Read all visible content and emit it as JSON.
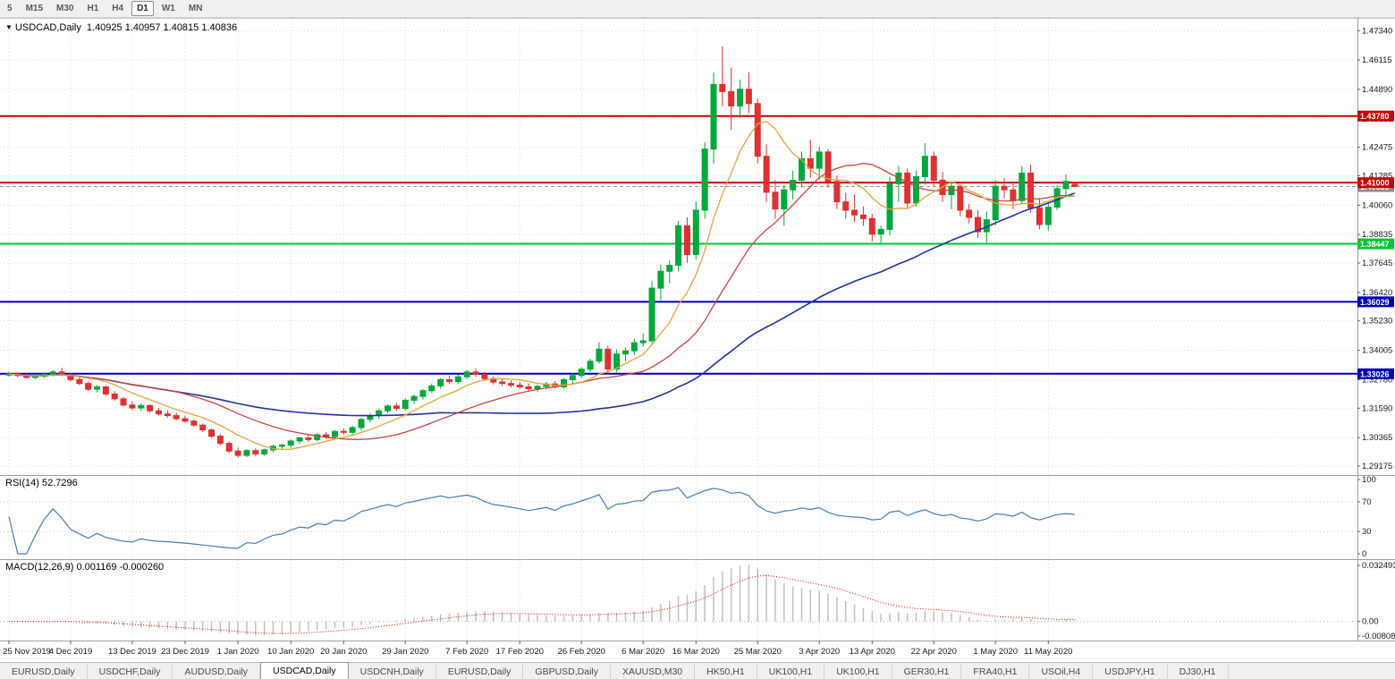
{
  "icons": {
    "collapse_triangle": "▼"
  },
  "toolbar": {
    "timeframes": [
      {
        "label": "5",
        "active": false
      },
      {
        "label": "M15",
        "active": false
      },
      {
        "label": "M30",
        "active": false
      },
      {
        "label": "H1",
        "active": false
      },
      {
        "label": "H4",
        "active": false
      },
      {
        "label": "D1",
        "active": true
      },
      {
        "label": "W1",
        "active": false
      },
      {
        "label": "MN",
        "active": false
      }
    ]
  },
  "chart": {
    "title_symbol": "USDCAD,Daily",
    "title_ohlc": "1.40925 1.40957 1.40815 1.40836",
    "price_axis": [
      "1.47340",
      "1.46115",
      "1.44890",
      "1.43665",
      "1.42475",
      "1.41285",
      "1.40060",
      "1.38835",
      "1.37645",
      "1.36420",
      "1.35230",
      "1.34005",
      "1.32780",
      "1.31590",
      "1.30365",
      "1.29175"
    ],
    "price_axis_range": {
      "top": 1.478,
      "bottom": 1.288
    },
    "date_axis": [
      {
        "label": "25 Nov 2019",
        "bar": 0
      },
      {
        "label": "4 Dec 2019",
        "bar": 7
      },
      {
        "label": "13 Dec 2019",
        "bar": 14
      },
      {
        "label": "23 Dec 2019",
        "bar": 20
      },
      {
        "label": "1 Jan 2020",
        "bar": 26
      },
      {
        "label": "10 Jan 2020",
        "bar": 32
      },
      {
        "label": "20 Jan 2020",
        "bar": 38
      },
      {
        "label": "29 Jan 2020",
        "bar": 45
      },
      {
        "label": "7 Feb 2020",
        "bar": 52
      },
      {
        "label": "17 Feb 2020",
        "bar": 58
      },
      {
        "label": "26 Feb 2020",
        "bar": 65
      },
      {
        "label": "6 Mar 2020",
        "bar": 72
      },
      {
        "label": "16 Mar 2020",
        "bar": 78
      },
      {
        "label": "25 Mar 2020",
        "bar": 85
      },
      {
        "label": "3 Apr 2020",
        "bar": 92
      },
      {
        "label": "13 Apr 2020",
        "bar": 98
      },
      {
        "label": "22 Apr 2020",
        "bar": 105
      },
      {
        "label": "1 May 2020",
        "bar": 112
      },
      {
        "label": "11 May 2020",
        "bar": 118
      }
    ],
    "levels": [
      {
        "value": 1.4378,
        "label": "1.43780",
        "color": "#CC0000"
      },
      {
        "value": 1.41,
        "label": "1.41000",
        "color": "#CC0000"
      },
      {
        "value": 1.38447,
        "label": "1.38447",
        "color": "#00C832"
      },
      {
        "value": 1.36029,
        "label": "1.36029",
        "color": "#0000B4"
      },
      {
        "value": 1.33026,
        "label": "1.33026",
        "color": "#0000B4"
      }
    ],
    "current_price": {
      "value": 1.40836,
      "label": "1.40836",
      "color": "#8C8C8C"
    },
    "colors": {
      "up": "#00A83C",
      "down": "#E03030",
      "ma_fast": "#E8A33D",
      "ma_mid": "#CC4444",
      "ma_slow": "#2433A0",
      "grid": "#DADADA"
    },
    "ma_periods": {
      "fast": 8,
      "mid": 20,
      "slow": 50
    },
    "candles": [
      [
        1.3297,
        1.331,
        1.329,
        1.3302
      ],
      [
        1.3302,
        1.3308,
        1.3288,
        1.3295
      ],
      [
        1.3295,
        1.3305,
        1.3283,
        1.3287
      ],
      [
        1.3287,
        1.33,
        1.328,
        1.3292
      ],
      [
        1.3292,
        1.3305,
        1.3285,
        1.33
      ],
      [
        1.33,
        1.3318,
        1.3292,
        1.331
      ],
      [
        1.331,
        1.3328,
        1.3296,
        1.33
      ],
      [
        1.33,
        1.3305,
        1.327,
        1.3278
      ],
      [
        1.3278,
        1.329,
        1.3255,
        1.3262
      ],
      [
        1.3262,
        1.327,
        1.323,
        1.3238
      ],
      [
        1.3238,
        1.3255,
        1.3225,
        1.3248
      ],
      [
        1.3248,
        1.3252,
        1.321,
        1.3218
      ],
      [
        1.3218,
        1.323,
        1.319,
        1.3198
      ],
      [
        1.3198,
        1.3205,
        1.3165,
        1.3172
      ],
      [
        1.3172,
        1.3188,
        1.315,
        1.316
      ],
      [
        1.316,
        1.3178,
        1.3148,
        1.317
      ],
      [
        1.317,
        1.3175,
        1.314,
        1.3148
      ],
      [
        1.3148,
        1.316,
        1.3128,
        1.3135
      ],
      [
        1.3135,
        1.315,
        1.3118,
        1.3128
      ],
      [
        1.3128,
        1.314,
        1.3108,
        1.3115
      ],
      [
        1.3115,
        1.3128,
        1.3098,
        1.3105
      ],
      [
        1.3105,
        1.3112,
        1.308,
        1.3088
      ],
      [
        1.3088,
        1.3095,
        1.306,
        1.3068
      ],
      [
        1.3068,
        1.3075,
        1.3035,
        1.3042
      ],
      [
        1.3042,
        1.305,
        1.3005,
        1.3012
      ],
      [
        1.3012,
        1.302,
        1.2972,
        1.298
      ],
      [
        1.298,
        1.2995,
        1.2952,
        1.2962
      ],
      [
        1.2962,
        1.2988,
        1.2955,
        1.2982
      ],
      [
        1.2982,
        1.2992,
        1.2958,
        1.2968
      ],
      [
        1.2968,
        1.299,
        1.296,
        1.2985
      ],
      [
        1.2985,
        1.3008,
        1.2975,
        1.3
      ],
      [
        1.3,
        1.3012,
        1.2985,
        1.3005
      ],
      [
        1.3005,
        1.3028,
        1.2995,
        1.3022
      ],
      [
        1.3022,
        1.304,
        1.301,
        1.3035
      ],
      [
        1.3035,
        1.3048,
        1.3018,
        1.3028
      ],
      [
        1.3028,
        1.3055,
        1.302,
        1.3048
      ],
      [
        1.3048,
        1.306,
        1.303,
        1.304
      ],
      [
        1.304,
        1.3068,
        1.3032,
        1.3062
      ],
      [
        1.3062,
        1.3075,
        1.3048,
        1.3058
      ],
      [
        1.3058,
        1.3085,
        1.305,
        1.3078
      ],
      [
        1.3078,
        1.312,
        1.3065,
        1.3112
      ],
      [
        1.3112,
        1.3138,
        1.31,
        1.3128
      ],
      [
        1.3128,
        1.3155,
        1.3115,
        1.3148
      ],
      [
        1.3148,
        1.3175,
        1.3138,
        1.3168
      ],
      [
        1.3168,
        1.318,
        1.3148,
        1.3158
      ],
      [
        1.3158,
        1.32,
        1.315,
        1.3192
      ],
      [
        1.3192,
        1.3215,
        1.3178,
        1.3208
      ],
      [
        1.3208,
        1.324,
        1.3195,
        1.3232
      ],
      [
        1.3232,
        1.3262,
        1.3222,
        1.3252
      ],
      [
        1.3252,
        1.3285,
        1.324,
        1.3278
      ],
      [
        1.3278,
        1.3295,
        1.326,
        1.327
      ],
      [
        1.327,
        1.3298,
        1.3262,
        1.329
      ],
      [
        1.329,
        1.332,
        1.328,
        1.331
      ],
      [
        1.331,
        1.3325,
        1.329,
        1.33
      ],
      [
        1.33,
        1.331,
        1.3272,
        1.3282
      ],
      [
        1.3282,
        1.3292,
        1.3258,
        1.3268
      ],
      [
        1.3268,
        1.3285,
        1.3252,
        1.3262
      ],
      [
        1.3262,
        1.3275,
        1.3245,
        1.3255
      ],
      [
        1.3255,
        1.3268,
        1.324,
        1.3248
      ],
      [
        1.3248,
        1.3262,
        1.3232,
        1.324
      ],
      [
        1.324,
        1.3258,
        1.3228,
        1.325
      ],
      [
        1.325,
        1.3268,
        1.3238,
        1.326
      ],
      [
        1.326,
        1.3272,
        1.324,
        1.3248
      ],
      [
        1.3248,
        1.3285,
        1.324,
        1.3278
      ],
      [
        1.3278,
        1.3305,
        1.3262,
        1.3295
      ],
      [
        1.3295,
        1.333,
        1.3285,
        1.3322
      ],
      [
        1.3322,
        1.3365,
        1.331,
        1.3355
      ],
      [
        1.3355,
        1.3435,
        1.3345,
        1.3405
      ],
      [
        1.3405,
        1.342,
        1.3305,
        1.3322
      ],
      [
        1.3322,
        1.3405,
        1.3308,
        1.3385
      ],
      [
        1.3385,
        1.3412,
        1.3355,
        1.3398
      ],
      [
        1.3398,
        1.3448,
        1.338,
        1.3432
      ],
      [
        1.3432,
        1.347,
        1.3415,
        1.344
      ],
      [
        1.344,
        1.369,
        1.343,
        1.366
      ],
      [
        1.366,
        1.3758,
        1.361,
        1.373
      ],
      [
        1.373,
        1.3775,
        1.368,
        1.3755
      ],
      [
        1.3755,
        1.394,
        1.373,
        1.392
      ],
      [
        1.392,
        1.3955,
        1.3765,
        1.38
      ],
      [
        1.38,
        1.402,
        1.378,
        1.3985
      ],
      [
        1.3985,
        1.4268,
        1.395,
        1.424
      ],
      [
        1.424,
        1.456,
        1.418,
        1.451
      ],
      [
        1.451,
        1.4668,
        1.442,
        1.448
      ],
      [
        1.448,
        1.458,
        1.432,
        1.442
      ],
      [
        1.442,
        1.453,
        1.437,
        1.449
      ],
      [
        1.449,
        1.456,
        1.439,
        1.443
      ],
      [
        1.443,
        1.445,
        1.418,
        1.421
      ],
      [
        1.421,
        1.426,
        1.402,
        1.406
      ],
      [
        1.406,
        1.411,
        1.395,
        1.399
      ],
      [
        1.399,
        1.409,
        1.392,
        1.407
      ],
      [
        1.407,
        1.415,
        1.403,
        1.411
      ],
      [
        1.411,
        1.423,
        1.408,
        1.42
      ],
      [
        1.42,
        1.428,
        1.412,
        1.416
      ],
      [
        1.416,
        1.425,
        1.411,
        1.4228
      ],
      [
        1.4228,
        1.424,
        1.408,
        1.4105
      ],
      [
        1.4105,
        1.413,
        1.399,
        1.402
      ],
      [
        1.402,
        1.4058,
        1.395,
        1.3985
      ],
      [
        1.3985,
        1.405,
        1.3935,
        1.3965
      ],
      [
        1.3965,
        1.4,
        1.392,
        1.395
      ],
      [
        1.395,
        1.397,
        1.3855,
        1.3885
      ],
      [
        1.3885,
        1.392,
        1.385,
        1.3905
      ],
      [
        1.3905,
        1.4125,
        1.388,
        1.4095
      ],
      [
        1.4095,
        1.417,
        1.402,
        1.414
      ],
      [
        1.414,
        1.416,
        1.399,
        1.4015
      ],
      [
        1.4015,
        1.415,
        1.4,
        1.4125
      ],
      [
        1.4125,
        1.4265,
        1.409,
        1.421
      ],
      [
        1.421,
        1.423,
        1.4085,
        1.411
      ],
      [
        1.411,
        1.4145,
        1.402,
        1.405
      ],
      [
        1.405,
        1.4105,
        1.399,
        1.4085
      ],
      [
        1.4085,
        1.409,
        1.396,
        1.3985
      ],
      [
        1.3985,
        1.401,
        1.393,
        1.3955
      ],
      [
        1.3955,
        1.3985,
        1.387,
        1.3895
      ],
      [
        1.3895,
        1.398,
        1.385,
        1.3945
      ],
      [
        1.3945,
        1.411,
        1.392,
        1.4085
      ],
      [
        1.4085,
        1.412,
        1.4035,
        1.407
      ],
      [
        1.407,
        1.41,
        1.399,
        1.4025
      ],
      [
        1.4025,
        1.417,
        1.401,
        1.414
      ],
      [
        1.414,
        1.4175,
        1.3975,
        1.3995
      ],
      [
        1.3995,
        1.4035,
        1.3905,
        1.3925
      ],
      [
        1.3925,
        1.402,
        1.39,
        1.3998
      ],
      [
        1.3998,
        1.409,
        1.3985,
        1.4075
      ],
      [
        1.4075,
        1.4135,
        1.404,
        1.4105
      ],
      [
        1.4093,
        1.4096,
        1.4082,
        1.4084
      ]
    ]
  },
  "rsi": {
    "label": "RSI(14) 52.7296",
    "period": 14,
    "color": "#4A7FB5",
    "axis": [
      {
        "label": "100",
        "value": 100
      },
      {
        "label": "70",
        "value": 70
      },
      {
        "label": "30",
        "value": 30
      },
      {
        "label": "0",
        "value": 0
      }
    ],
    "dotted_levels": [
      70,
      30
    ]
  },
  "macd": {
    "label": "MACD(12,26,9) 0.001169 -0.000260",
    "fast": 12,
    "slow": 26,
    "signal": 9,
    "histogram_color": "#C0C0C0",
    "signal_color": "#CC0000",
    "range": {
      "max": 0.032493,
      "min": -0.00808
    },
    "axis": [
      {
        "label": "0.032493",
        "value": 0.032493
      },
      {
        "label": "0.00",
        "value": 0
      },
      {
        "label": "-0.00808",
        "value": -0.00808
      }
    ]
  },
  "tabs": [
    {
      "label": "EURUSD,Daily",
      "active": false
    },
    {
      "label": "USDCHF,Daily",
      "active": false
    },
    {
      "label": "AUDUSD,Daily",
      "active": false
    },
    {
      "label": "USDCAD,Daily",
      "active": true
    },
    {
      "label": "USDCNH,Daily",
      "active": false
    },
    {
      "label": "EURUSD,Daily",
      "active": false
    },
    {
      "label": "GBPUSD,Daily",
      "active": false
    },
    {
      "label": "XAUUSD,M30",
      "active": false
    },
    {
      "label": "HK50,H1",
      "active": false
    },
    {
      "label": "UK100,H1",
      "active": false
    },
    {
      "label": "UK100,H1",
      "active": false
    },
    {
      "label": "GER30,H1",
      "active": false
    },
    {
      "label": "FRA40,H1",
      "active": false
    },
    {
      "label": "USOil,H4",
      "active": false
    },
    {
      "label": "USDJPY,H1",
      "active": false
    },
    {
      "label": "DJ30,H1",
      "active": false
    }
  ]
}
